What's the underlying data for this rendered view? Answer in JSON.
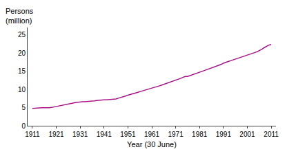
{
  "chart_data": {
    "type": "line",
    "xlabel": "Year (30 June)",
    "ylabel": [
      "Persons",
      "(million)"
    ],
    "x": [
      1911,
      1912,
      1913,
      1914,
      1915,
      1916,
      1917,
      1918,
      1919,
      1920,
      1921,
      1922,
      1923,
      1924,
      1925,
      1926,
      1927,
      1928,
      1929,
      1930,
      1931,
      1932,
      1933,
      1934,
      1935,
      1936,
      1937,
      1938,
      1939,
      1940,
      1941,
      1942,
      1943,
      1944,
      1945,
      1946,
      1947,
      1948,
      1949,
      1950,
      1951,
      1952,
      1953,
      1954,
      1955,
      1956,
      1957,
      1958,
      1959,
      1960,
      1961,
      1962,
      1963,
      1964,
      1965,
      1966,
      1967,
      1968,
      1969,
      1970,
      1971,
      1972,
      1973,
      1974,
      1975,
      1976,
      1977,
      1978,
      1979,
      1980,
      1981,
      1982,
      1983,
      1984,
      1985,
      1986,
      1987,
      1988,
      1989,
      1990,
      1991,
      1992,
      1993,
      1994,
      1995,
      1996,
      1997,
      1998,
      1999,
      2000,
      2001,
      2002,
      2003,
      2004,
      2005,
      2006,
      2007,
      2008,
      2009,
      2010,
      2011
    ],
    "values": [
      4.75,
      4.84,
      4.93,
      5.0,
      4.97,
      4.94,
      4.92,
      4.94,
      5.03,
      5.17,
      5.41,
      5.51,
      5.64,
      5.77,
      5.9,
      6.01,
      6.13,
      6.25,
      6.37,
      6.5,
      6.63,
      6.63,
      6.63,
      6.65,
      6.71,
      6.77,
      6.84,
      6.92,
      7.04,
      7.08,
      7.14,
      7.12,
      7.18,
      7.26,
      7.27,
      7.35,
      7.58,
      7.75,
      7.97,
      8.18,
      8.42,
      8.64,
      8.82,
      8.99,
      9.16,
      9.37,
      9.55,
      9.73,
      9.92,
      10.09,
      10.27,
      10.51,
      10.71,
      10.93,
      11.14,
      11.36,
      11.6,
      11.82,
      12.03,
      12.26,
      12.55,
      12.76,
      13.0,
      13.28,
      13.55,
      13.55,
      13.76,
      14.0,
      14.22,
      14.47,
      14.68,
      14.92,
      15.17,
      15.42,
      15.65,
      15.84,
      16.02,
      16.3,
      16.53,
      16.84,
      17.19,
      17.49,
      17.66,
      17.86,
      18.07,
      18.31,
      18.53,
      18.73,
      18.97,
      19.15,
      19.41,
      19.64,
      19.87,
      20.09,
      20.33,
      20.61,
      20.97,
      21.43,
      21.87,
      22.16,
      22.34
    ],
    "color": "#aa1188",
    "xlim": [
      1909,
      2013
    ],
    "xticks": [
      1911,
      1921,
      1931,
      1941,
      1951,
      1961,
      1971,
      1981,
      1991,
      2001,
      2011
    ],
    "ylim": [
      0,
      27
    ],
    "yticks": [
      0,
      5,
      10,
      15,
      20,
      25
    ],
    "grid": false
  }
}
